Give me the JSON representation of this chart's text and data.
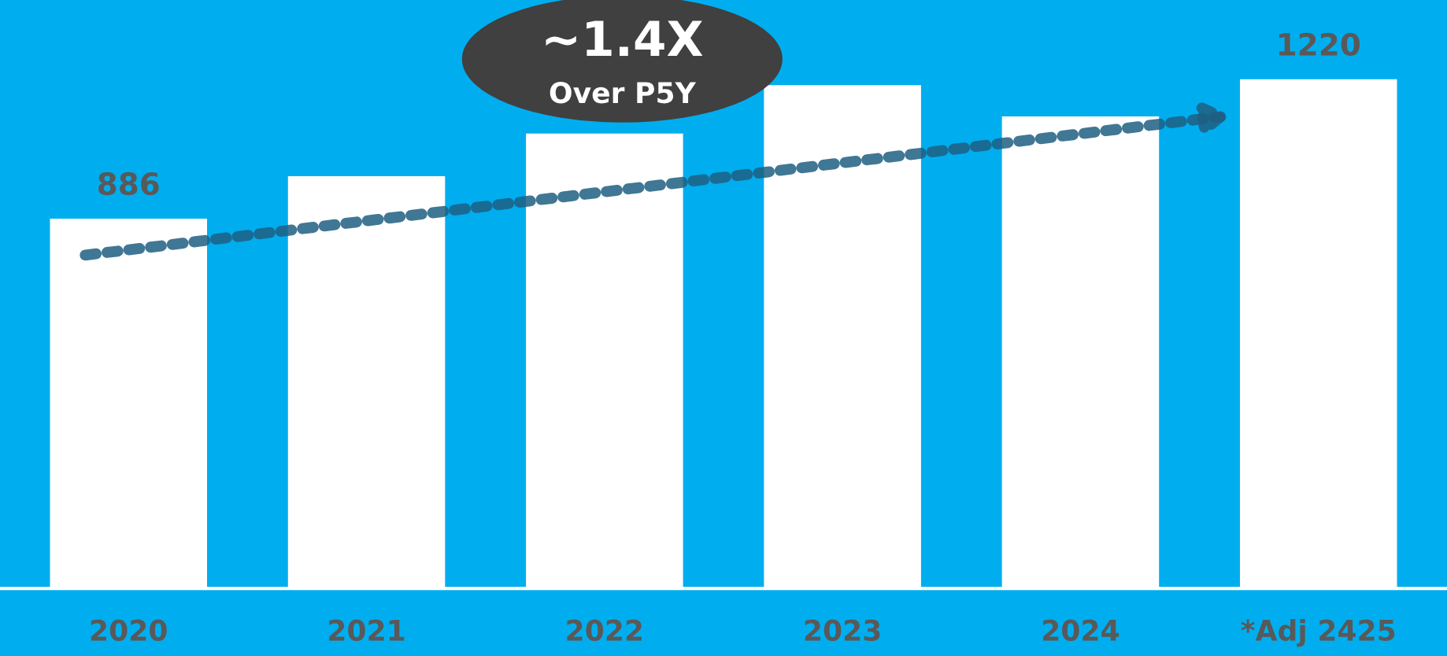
{
  "chart_data": {
    "type": "bar",
    "categories": [
      "2020",
      "2021",
      "2022",
      "2023",
      "2024",
      "*Adj 2425"
    ],
    "values": [
      886,
      988,
      1090,
      1206,
      1131,
      1220
    ],
    "value_labels": [
      "886",
      null,
      null,
      null,
      null,
      "1220"
    ],
    "color": "#ffffff",
    "ylim": [
      0,
      1410
    ],
    "annotations": [
      "~1.4X\nOver P5Y"
    ]
  }
}
